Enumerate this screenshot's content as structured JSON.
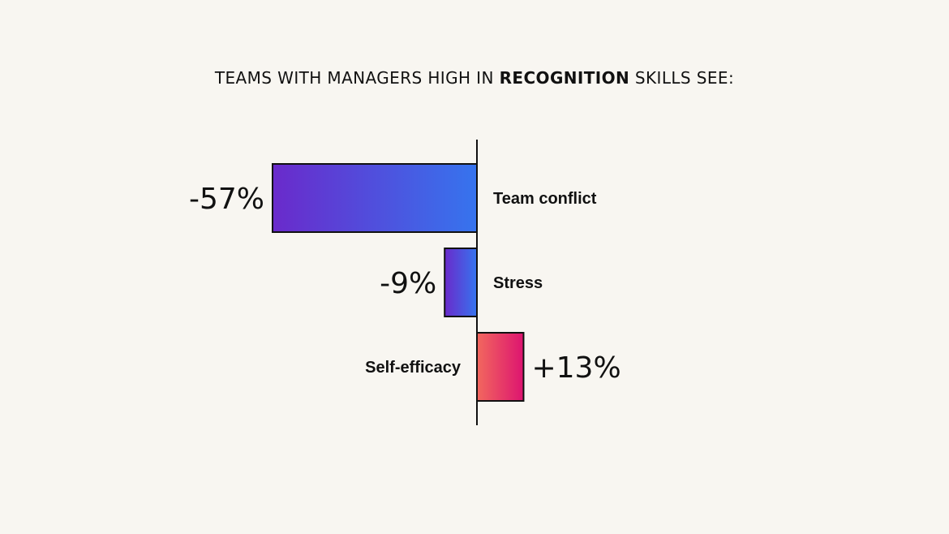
{
  "title": {
    "prefix": "TEAMS WITH MANAGERS HIGH IN ",
    "emphasis": "RECOGNITION",
    "suffix": " SKILLS SEE:"
  },
  "chart_data": {
    "type": "bar",
    "orientation": "horizontal",
    "title": "TEAMS WITH MANAGERS HIGH IN RECOGNITION SKILLS SEE:",
    "categories": [
      "Team conflict",
      "Stress",
      "Self-efficacy"
    ],
    "values": [
      -57,
      -9,
      13
    ],
    "value_labels": [
      "-57%",
      "-9%",
      "+13%"
    ],
    "unit": "%",
    "xlim": [
      -57,
      13
    ],
    "grid": false,
    "legend": "none",
    "colors": {
      "negative_start": "#6a2acb",
      "negative_end": "#3674ee",
      "positive_start": "#f2685e",
      "positive_end": "#dd1470",
      "axis": "#111111",
      "background": "#f8f6f1"
    }
  }
}
